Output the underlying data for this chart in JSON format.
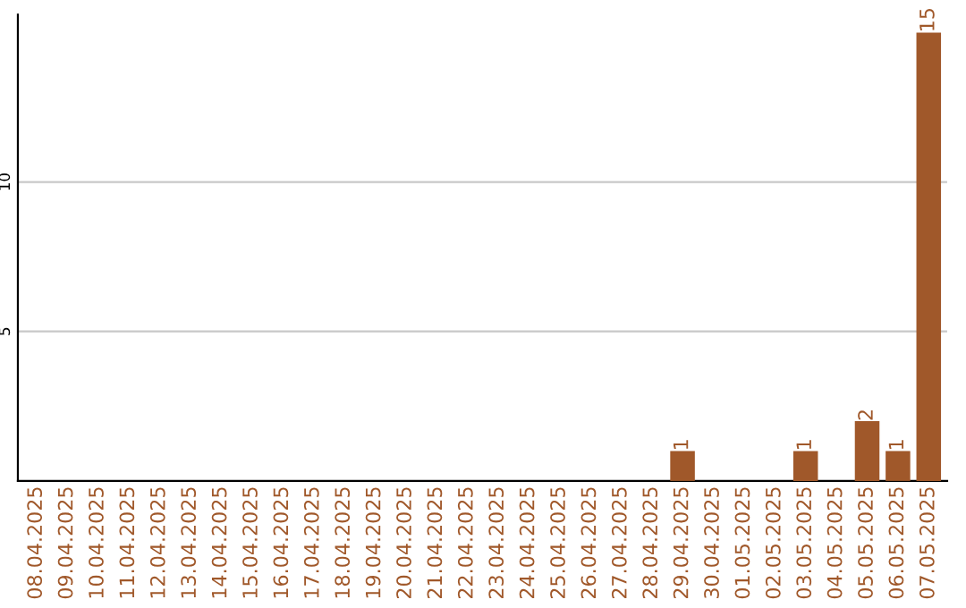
{
  "chart_data": {
    "type": "bar",
    "categories": [
      "08.04.2025",
      "09.04.2025",
      "10.04.2025",
      "11.04.2025",
      "12.04.2025",
      "13.04.2025",
      "14.04.2025",
      "15.04.2025",
      "16.04.2025",
      "17.04.2025",
      "18.04.2025",
      "19.04.2025",
      "20.04.2025",
      "21.04.2025",
      "22.04.2025",
      "23.04.2025",
      "24.04.2025",
      "25.04.2025",
      "26.04.2025",
      "27.04.2025",
      "28.04.2025",
      "29.04.2025",
      "30.04.2025",
      "01.05.2025",
      "02.05.2025",
      "03.05.2025",
      "04.05.2025",
      "05.05.2025",
      "06.05.2025",
      "07.05.2025"
    ],
    "values": [
      0,
      0,
      0,
      0,
      0,
      0,
      0,
      0,
      0,
      0,
      0,
      0,
      0,
      0,
      0,
      0,
      0,
      0,
      0,
      0,
      0,
      1,
      0,
      0,
      0,
      1,
      0,
      2,
      1,
      15
    ],
    "value_labels": [
      null,
      null,
      null,
      null,
      null,
      null,
      null,
      null,
      null,
      null,
      null,
      null,
      null,
      null,
      null,
      null,
      null,
      null,
      null,
      null,
      null,
      "1",
      null,
      null,
      null,
      "1",
      null,
      "2",
      "1",
      "15"
    ],
    "color": "#a0582a",
    "ylim": [
      0,
      15.6
    ],
    "yticks": [
      5,
      10
    ],
    "grid": "y"
  }
}
